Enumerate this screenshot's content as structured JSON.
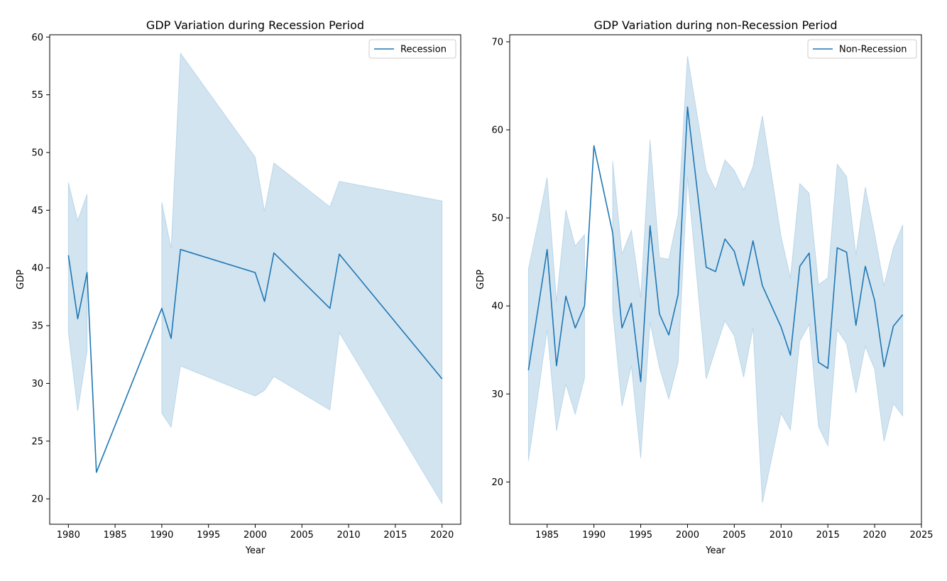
{
  "colors": {
    "line": "#1f77b4",
    "band": "#1f77b4"
  },
  "chart_data": [
    {
      "type": "line",
      "title": "GDP Variation during Recession Period",
      "xlabel": "Year",
      "ylabel": "GDP",
      "xlim": [
        1978,
        2022
      ],
      "ylim": [
        17.8,
        60.2
      ],
      "xticks": [
        1980,
        1985,
        1990,
        1995,
        2000,
        2005,
        2010,
        2015,
        2020
      ],
      "yticks": [
        20,
        25,
        30,
        35,
        40,
        45,
        50,
        55,
        60
      ],
      "grid": false,
      "legend": "top-right",
      "series": [
        {
          "name": "Recession",
          "segments": [
            {
              "x": [
                1980,
                1981,
                1982,
                1983,
                1990,
                1991,
                1992,
                2000,
                2001,
                2002,
                2008,
                2009,
                2020
              ],
              "y": [
                41.1,
                35.6,
                39.6,
                22.3,
                36.5,
                33.9,
                41.6,
                39.6,
                37.1,
                41.3,
                36.5,
                41.2,
                30.4
              ]
            }
          ],
          "ci_segments": [
            {
              "x": [
                1980,
                1981,
                1982
              ],
              "lower": [
                34.4,
                27.6,
                32.8
              ],
              "upper": [
                47.4,
                44.1,
                46.4
              ]
            },
            {
              "x": [
                1990,
                1991,
                1992,
                2000,
                2001,
                2002,
                2008,
                2009,
                2020
              ],
              "lower": [
                27.4,
                26.2,
                31.5,
                28.9,
                29.4,
                30.6,
                27.7,
                34.4,
                19.6
              ],
              "upper": [
                45.7,
                41.7,
                58.6,
                49.6,
                44.9,
                49.1,
                45.3,
                47.5,
                45.8
              ]
            }
          ]
        }
      ]
    },
    {
      "type": "line",
      "title": "GDP Variation during non-Recession Period",
      "xlabel": "Year",
      "ylabel": "GDP",
      "xlim": [
        1981,
        2025
      ],
      "ylim": [
        15.2,
        70.8
      ],
      "xticks": [
        1985,
        1990,
        1995,
        2000,
        2005,
        2010,
        2015,
        2020,
        2025
      ],
      "yticks": [
        20,
        30,
        40,
        50,
        60,
        70
      ],
      "grid": false,
      "legend": "top-right",
      "series": [
        {
          "name": "Non-Recession",
          "segments": [
            {
              "x": [
                1983,
                1984,
                1985,
                1986,
                1987,
                1988,
                1989,
                1990,
                1992,
                1993,
                1994,
                1995,
                1996,
                1997,
                1998,
                1999,
                2000,
                2002,
                2003,
                2004,
                2005,
                2006,
                2007,
                2008,
                2010,
                2011,
                2012,
                2013,
                2014,
                2015,
                2016,
                2017,
                2018,
                2019,
                2020,
                2021,
                2022,
                2023
              ],
              "y": [
                32.7,
                39.5,
                46.4,
                33.2,
                41.1,
                37.5,
                40.0,
                58.2,
                48.3,
                37.5,
                40.3,
                31.4,
                49.1,
                39.1,
                36.7,
                41.3,
                62.6,
                44.4,
                43.9,
                47.6,
                46.2,
                42.3,
                47.4,
                42.3,
                37.6,
                34.4,
                44.5,
                46.0,
                33.6,
                32.9,
                46.6,
                46.1,
                37.8,
                44.5,
                40.6,
                33.1,
                37.7,
                39.0
              ]
            }
          ],
          "ci_segments": [
            {
              "x": [
                1983,
                1984,
                1985,
                1986,
                1987,
                1988,
                1989
              ],
              "lower": [
                22.4,
                29.7,
                37.3,
                25.8,
                31.1,
                27.7,
                31.8
              ],
              "upper": [
                44.2,
                49.3,
                54.6,
                40.5,
                50.9,
                46.8,
                48.1
              ]
            },
            {
              "x": [
                1992,
                1993,
                1994,
                1995,
                1996,
                1997,
                1998,
                1999,
                2000,
                2002,
                2003,
                2004,
                2005,
                2006,
                2007,
                2008,
                2010,
                2011,
                2012,
                2013,
                2014,
                2015,
                2016,
                2017,
                2018,
                2019,
                2020,
                2021,
                2022,
                2023
              ],
              "lower": [
                39.5,
                28.6,
                33.2,
                22.7,
                38.1,
                33.0,
                29.4,
                33.6,
                54.6,
                31.7,
                35.1,
                38.3,
                36.6,
                31.9,
                37.5,
                17.6,
                27.8,
                25.9,
                36.0,
                37.9,
                26.3,
                24.1,
                37.3,
                35.7,
                30.1,
                35.4,
                32.8,
                24.6,
                28.9,
                27.5
              ],
              "upper": [
                56.5,
                45.9,
                48.6,
                41.0,
                58.9,
                45.5,
                45.3,
                50.4,
                68.4,
                55.4,
                53.2,
                56.6,
                55.4,
                53.2,
                55.8,
                61.6,
                47.9,
                43.2,
                53.9,
                52.8,
                42.4,
                43.2,
                56.1,
                54.7,
                45.8,
                53.5,
                48.2,
                42.3,
                46.6,
                49.2
              ]
            }
          ]
        }
      ]
    }
  ]
}
